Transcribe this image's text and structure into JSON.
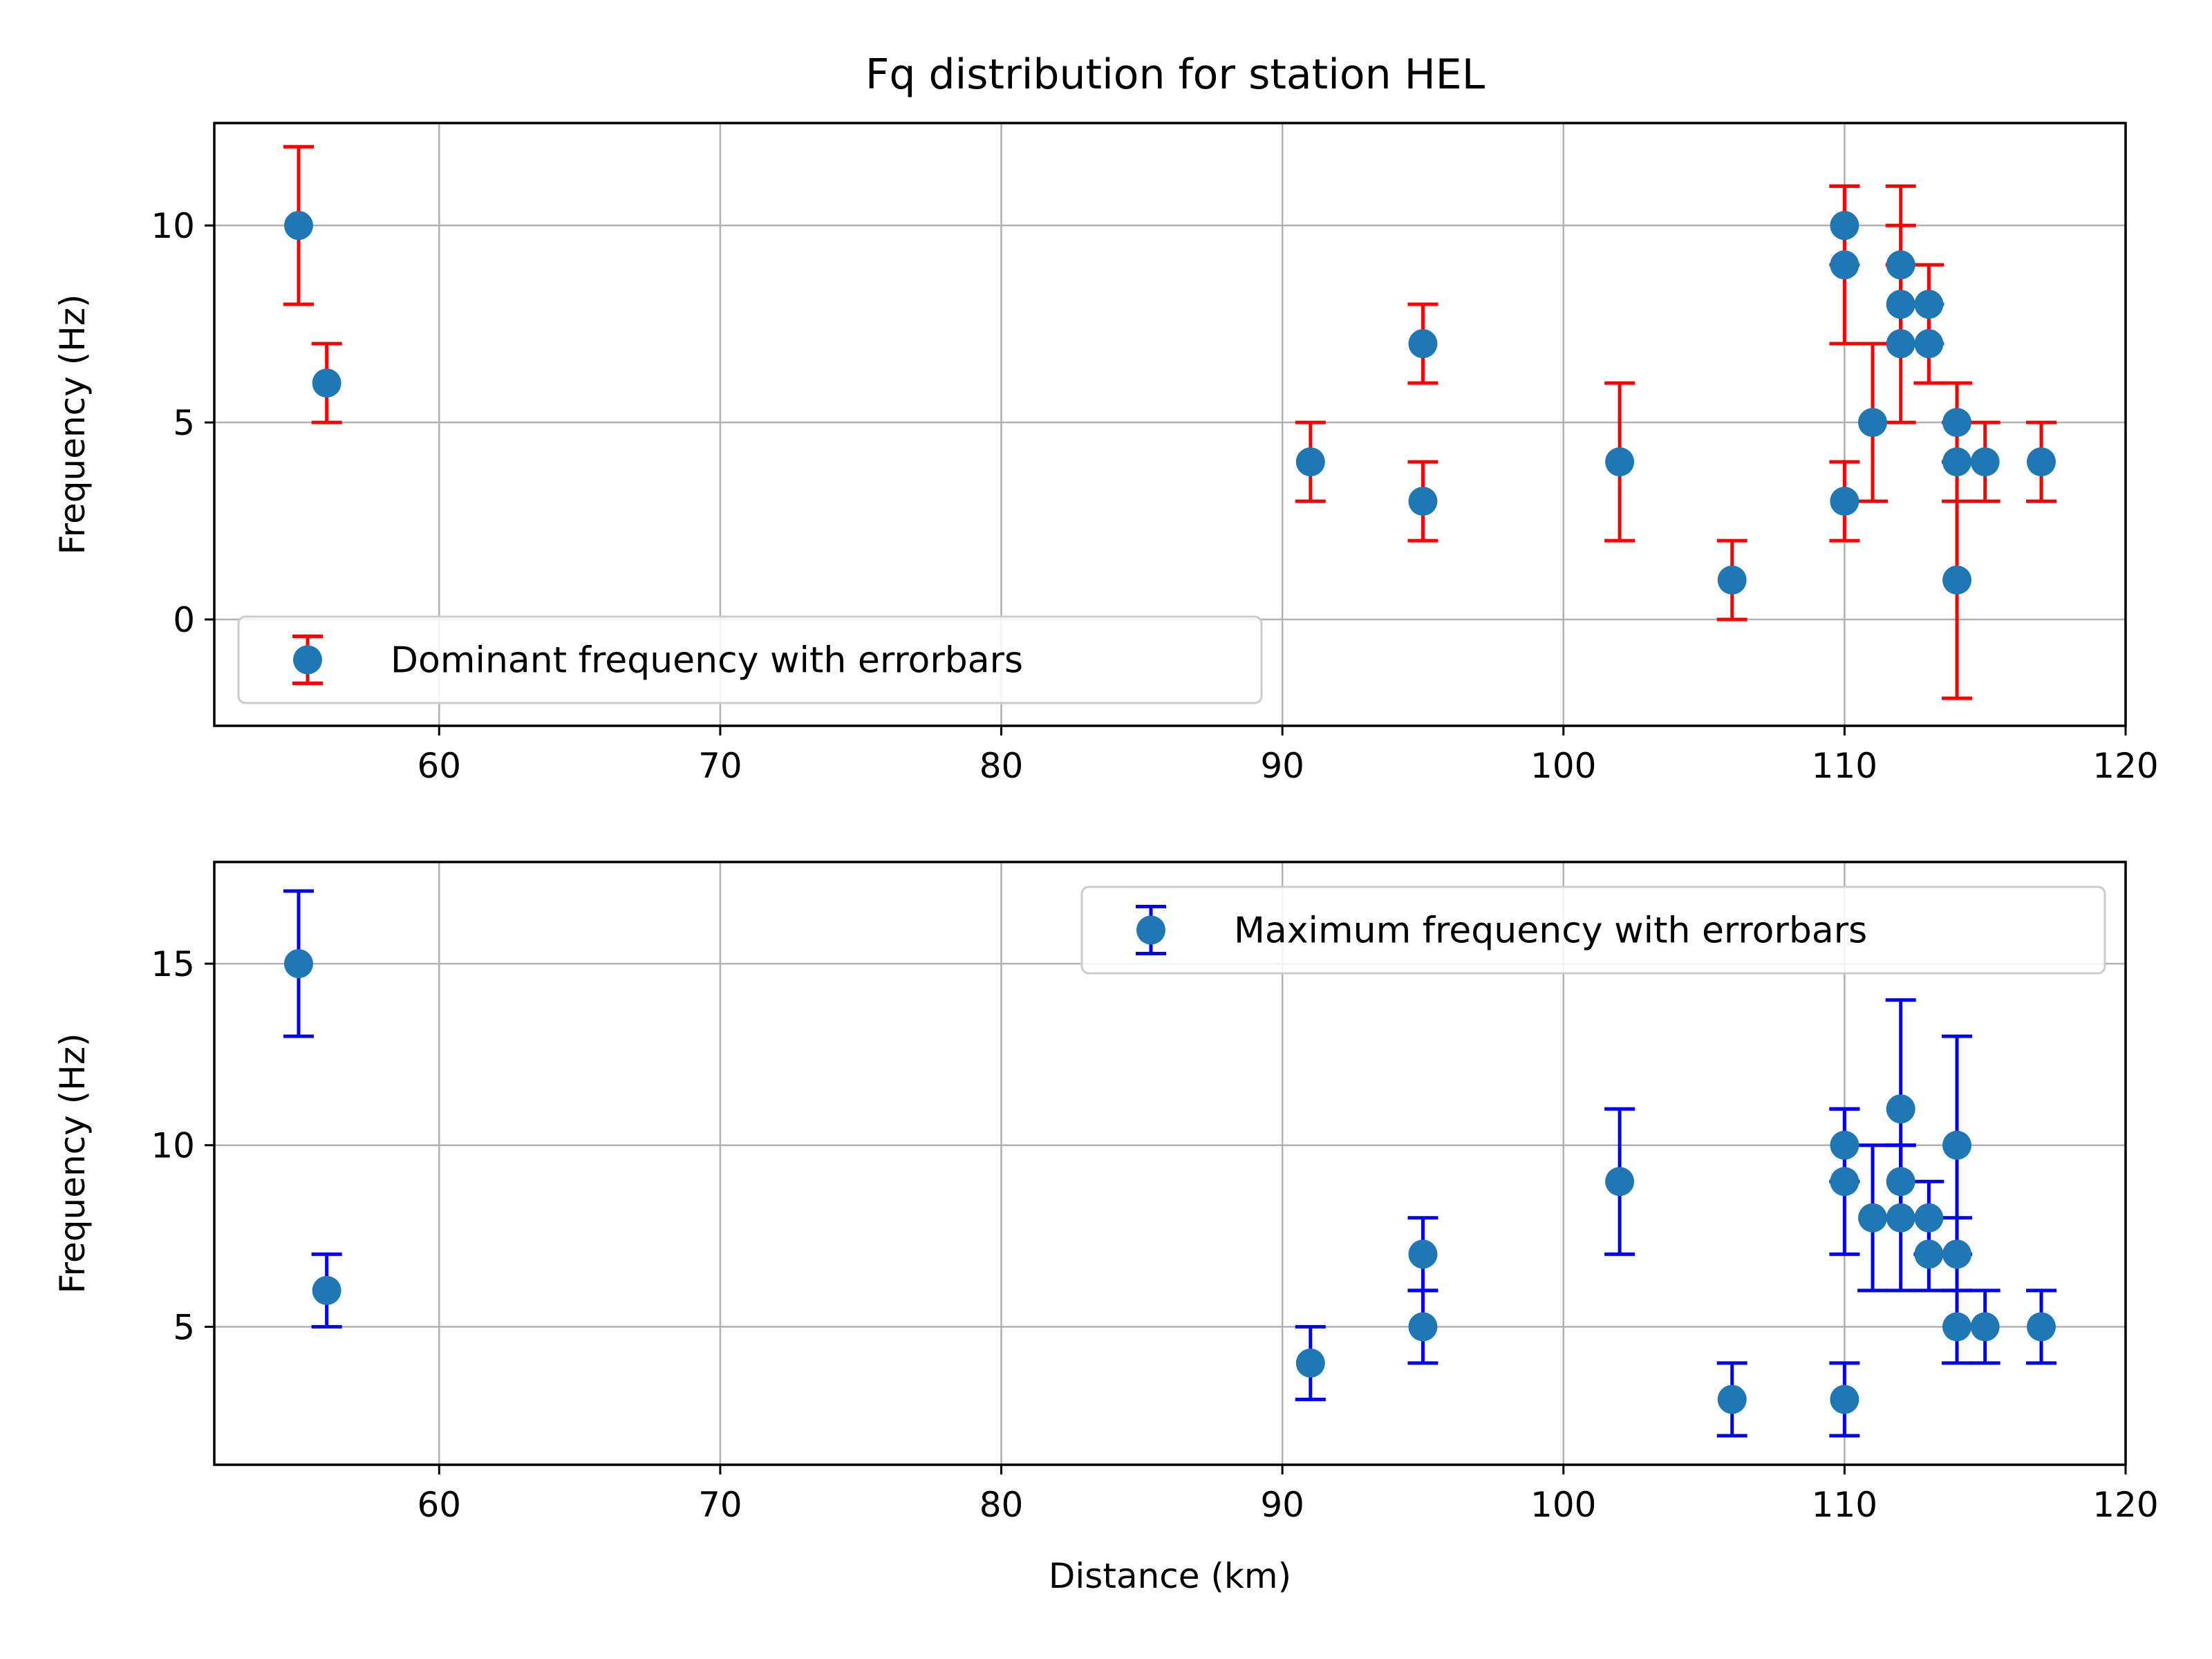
{
  "chart_data": [
    {
      "type": "scatter",
      "title": "Fq distribution for station HEL",
      "xlabel": "",
      "ylabel": "Frequency (Hz)",
      "xlim": [
        52,
        120
      ],
      "ylim": [
        -2.7,
        12.6
      ],
      "xticks": [
        60,
        70,
        80,
        90,
        100,
        110,
        120
      ],
      "yticks": [
        0,
        5,
        10
      ],
      "grid": true,
      "legend_position": "lower-left",
      "series": [
        {
          "name": "Dominant frequency with errorbars",
          "marker_color": "#1f77b4",
          "error_color": "#ff0000",
          "points": [
            {
              "x": 55,
              "y": 10,
              "lo": 8,
              "hi": 12
            },
            {
              "x": 56,
              "y": 6,
              "lo": 5,
              "hi": 7
            },
            {
              "x": 91,
              "y": 4,
              "lo": 3,
              "hi": 5
            },
            {
              "x": 95,
              "y": 7,
              "lo": 6,
              "hi": 8
            },
            {
              "x": 95,
              "y": 3,
              "lo": 2,
              "hi": 4
            },
            {
              "x": 102,
              "y": 4,
              "lo": 2,
              "hi": 6
            },
            {
              "x": 106,
              "y": 1,
              "lo": 0,
              "hi": 2
            },
            {
              "x": 110,
              "y": 10,
              "lo": 9,
              "hi": 11
            },
            {
              "x": 110,
              "y": 9,
              "lo": 7,
              "hi": 11
            },
            {
              "x": 110,
              "y": 3,
              "lo": 2,
              "hi": 4
            },
            {
              "x": 111,
              "y": 5,
              "lo": 3,
              "hi": 7
            },
            {
              "x": 112,
              "y": 9,
              "lo": 7,
              "hi": 11
            },
            {
              "x": 112,
              "y": 8,
              "lo": 7,
              "hi": 10
            },
            {
              "x": 112,
              "y": 7,
              "lo": 5,
              "hi": 9
            },
            {
              "x": 113,
              "y": 8,
              "lo": 7,
              "hi": 9
            },
            {
              "x": 113,
              "y": 7,
              "lo": 6,
              "hi": 8
            },
            {
              "x": 114,
              "y": 5,
              "lo": 4,
              "hi": 6
            },
            {
              "x": 114,
              "y": 4,
              "lo": 3,
              "hi": 5
            },
            {
              "x": 114,
              "y": 1,
              "lo": -2,
              "hi": 4
            },
            {
              "x": 115,
              "y": 4,
              "lo": 3,
              "hi": 5
            },
            {
              "x": 117,
              "y": 4,
              "lo": 3,
              "hi": 5
            }
          ]
        }
      ]
    },
    {
      "type": "scatter",
      "title": "",
      "xlabel": "Distance (km)",
      "ylabel": "Frequency (Hz)",
      "xlim": [
        52,
        120
      ],
      "ylim": [
        1.2,
        17.8
      ],
      "xticks": [
        60,
        70,
        80,
        90,
        100,
        110,
        120
      ],
      "yticks": [
        5,
        10,
        15
      ],
      "grid": true,
      "legend_position": "upper-right",
      "series": [
        {
          "name": "Maximum frequency with errorbars",
          "marker_color": "#1f77b4",
          "error_color": "#0000ff",
          "points": [
            {
              "x": 55,
              "y": 15,
              "lo": 13,
              "hi": 17
            },
            {
              "x": 56,
              "y": 6,
              "lo": 5,
              "hi": 7
            },
            {
              "x": 91,
              "y": 4,
              "lo": 3,
              "hi": 5
            },
            {
              "x": 95,
              "y": 7,
              "lo": 6,
              "hi": 8
            },
            {
              "x": 95,
              "y": 5,
              "lo": 4,
              "hi": 6
            },
            {
              "x": 102,
              "y": 9,
              "lo": 7,
              "hi": 11
            },
            {
              "x": 106,
              "y": 3,
              "lo": 2,
              "hi": 4
            },
            {
              "x": 110,
              "y": 10,
              "lo": 9,
              "hi": 11
            },
            {
              "x": 110,
              "y": 9,
              "lo": 7,
              "hi": 11
            },
            {
              "x": 110,
              "y": 3,
              "lo": 2,
              "hi": 4
            },
            {
              "x": 111,
              "y": 8,
              "lo": 6,
              "hi": 10
            },
            {
              "x": 112,
              "y": 11,
              "lo": 8,
              "hi": 14
            },
            {
              "x": 112,
              "y": 9,
              "lo": 8,
              "hi": 10
            },
            {
              "x": 112,
              "y": 8,
              "lo": 6,
              "hi": 10
            },
            {
              "x": 113,
              "y": 8,
              "lo": 7,
              "hi": 9
            },
            {
              "x": 113,
              "y": 7,
              "lo": 6,
              "hi": 8
            },
            {
              "x": 114,
              "y": 10,
              "lo": 7,
              "hi": 13
            },
            {
              "x": 114,
              "y": 7,
              "lo": 6,
              "hi": 8
            },
            {
              "x": 114,
              "y": 5,
              "lo": 4,
              "hi": 6
            },
            {
              "x": 115,
              "y": 5,
              "lo": 4,
              "hi": 6
            },
            {
              "x": 117,
              "y": 5,
              "lo": 4,
              "hi": 6
            }
          ]
        }
      ]
    }
  ]
}
